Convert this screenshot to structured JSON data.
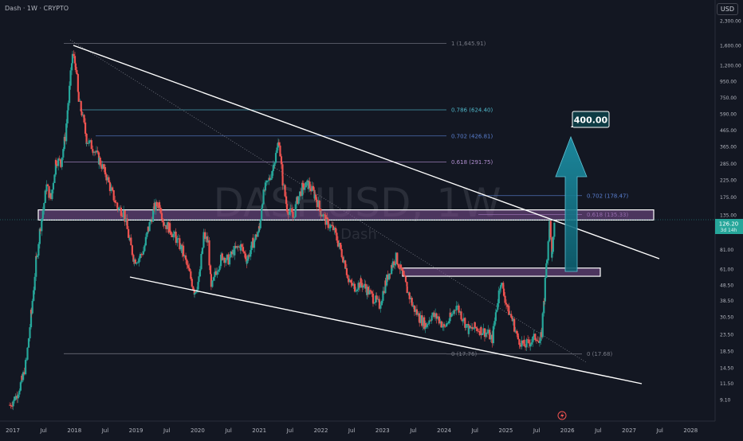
{
  "header": {
    "symbol_line": "Dash · 1W · CRYPTO",
    "currency": "USD"
  },
  "watermark": {
    "ticker": "DASHUSD, 1W",
    "name": "Dash"
  },
  "price_tag": {
    "price": "126.20",
    "countdown": "3d 14h"
  },
  "target": {
    "label": "400.00"
  },
  "colors": {
    "background": "#131722",
    "up": "#26a69a",
    "down": "#ef5350",
    "trendline": "#ffffff",
    "zone": "#7b4f8f",
    "arrow": "#1d92a8",
    "fib_cyan": "#4fb6c8",
    "fib_blue": "#5a7fd0",
    "fib_purple": "#b18fd0",
    "fib_gray": "#787b86"
  },
  "chart_data": {
    "type": "candlestick",
    "y_scale": "log",
    "ylim": [
      7.9,
      2350
    ],
    "y_ticks": [
      "2,300.00",
      "1,600.00",
      "1,200.00",
      "950.00",
      "750.00",
      "590.00",
      "465.00",
      "365.00",
      "285.00",
      "225.00",
      "175.00",
      "135.00",
      "105.00",
      "81.00",
      "61.00",
      "48.50",
      "38.50",
      "30.50",
      "23.50",
      "18.50",
      "14.50",
      "11.50",
      "9.10"
    ],
    "x_ticks": [
      "2017",
      "Jul",
      "2018",
      "Jul",
      "2019",
      "Jul",
      "2020",
      "Jul",
      "2021",
      "Jul",
      "2022",
      "Jul",
      "2023",
      "Jul",
      "2024",
      "Jul",
      "2025",
      "Jul",
      "2026",
      "Jul",
      "2027",
      "Jul",
      "2028"
    ],
    "fib_levels": [
      {
        "label": "1 (1,645.91)",
        "value": 1645.91
      },
      {
        "label": "0.786 (624.40)",
        "value": 624.4
      },
      {
        "label": "0.702 (426.81)",
        "value": 426.81
      },
      {
        "label": "0.618 (291.75)",
        "value": 291.75
      },
      {
        "label": "0.702 (178.47)",
        "value": 178.47
      },
      {
        "label": "0.618 (135.33)",
        "value": 135.33
      },
      {
        "label": "0 (17.76)",
        "value": 17.76
      },
      {
        "label": "0 (17.68)",
        "value": 17.68
      }
    ],
    "price_path": [
      [
        "2016.95",
        8.4
      ],
      [
        "2017.05",
        9.5
      ],
      [
        "2017.15",
        12
      ],
      [
        "2017.22",
        16
      ],
      [
        "2017.3",
        32
      ],
      [
        "2017.38",
        70
      ],
      [
        "2017.45",
        115
      ],
      [
        "2017.55",
        205
      ],
      [
        "2017.62",
        170
      ],
      [
        "2017.7",
        300
      ],
      [
        "2017.78",
        290
      ],
      [
        "2017.85",
        420
      ],
      [
        "2017.9",
        700
      ],
      [
        "2017.97",
        1400
      ],
      [
        "2018.02",
        1200
      ],
      [
        "2018.07",
        700
      ],
      [
        "2018.12",
        600
      ],
      [
        "2018.2",
        400
      ],
      [
        "2018.3",
        360
      ],
      [
        "2018.4",
        300
      ],
      [
        "2018.5",
        250
      ],
      [
        "2018.6",
        190
      ],
      [
        "2018.7",
        150
      ],
      [
        "2018.8",
        140
      ],
      [
        "2018.9",
        90
      ],
      [
        "2018.97",
        70
      ],
      [
        "2019.05",
        72
      ],
      [
        "2019.12",
        80
      ],
      [
        "2019.2",
        110
      ],
      [
        "2019.3",
        150
      ],
      [
        "2019.38",
        160
      ],
      [
        "2019.45",
        120
      ],
      [
        "2019.55",
        110
      ],
      [
        "2019.65",
        95
      ],
      [
        "2019.75",
        80
      ],
      [
        "2019.85",
        60
      ],
      [
        "2019.95",
        44
      ],
      [
        "2020.02",
        52
      ],
      [
        "2020.1",
        100
      ],
      [
        "2020.17",
        90
      ],
      [
        "2020.22",
        45
      ],
      [
        "2020.3",
        60
      ],
      [
        "2020.4",
        74
      ],
      [
        "2020.5",
        70
      ],
      [
        "2020.6",
        80
      ],
      [
        "2020.7",
        85
      ],
      [
        "2020.8",
        70
      ],
      [
        "2020.9",
        90
      ],
      [
        "2021.0",
        110
      ],
      [
        "2021.05",
        170
      ],
      [
        "2021.1",
        200
      ],
      [
        "2021.17",
        230
      ],
      [
        "2021.25",
        300
      ],
      [
        "2021.32",
        400
      ],
      [
        "2021.38",
        220
      ],
      [
        "2021.45",
        150
      ],
      [
        "2021.55",
        130
      ],
      [
        "2021.62",
        170
      ],
      [
        "2021.7",
        200
      ],
      [
        "2021.8",
        210
      ],
      [
        "2021.9",
        180
      ],
      [
        "2022.0",
        140
      ],
      [
        "2022.1",
        120
      ],
      [
        "2022.2",
        110
      ],
      [
        "2022.3",
        85
      ],
      [
        "2022.4",
        65
      ],
      [
        "2022.45",
        50
      ],
      [
        "2022.55",
        47
      ],
      [
        "2022.65",
        50
      ],
      [
        "2022.75",
        45
      ],
      [
        "2022.85",
        40
      ],
      [
        "2022.95",
        36
      ],
      [
        "2023.05",
        50
      ],
      [
        "2023.15",
        65
      ],
      [
        "2023.22",
        72
      ],
      [
        "2023.3",
        60
      ],
      [
        "2023.4",
        45
      ],
      [
        "2023.5",
        35
      ],
      [
        "2023.6",
        30
      ],
      [
        "2023.7",
        27
      ],
      [
        "2023.8",
        31
      ],
      [
        "2023.9",
        30
      ],
      [
        "2024.0",
        26
      ],
      [
        "2024.1",
        30
      ],
      [
        "2024.2",
        36
      ],
      [
        "2024.3",
        30
      ],
      [
        "2024.4",
        25
      ],
      [
        "2024.5",
        26
      ],
      [
        "2024.6",
        25
      ],
      [
        "2024.7",
        24
      ],
      [
        "2024.78",
        22
      ],
      [
        "2024.85",
        35
      ],
      [
        "2024.92",
        52
      ],
      [
        "2024.97",
        42
      ],
      [
        "2025.05",
        33
      ],
      [
        "2025.12",
        28
      ],
      [
        "2025.2",
        22
      ],
      [
        "2025.3",
        20
      ],
      [
        "2025.4",
        21
      ],
      [
        "2025.5",
        23
      ],
      [
        "2025.55",
        20
      ],
      [
        "2025.58",
        24
      ],
      [
        "2025.62",
        40
      ],
      [
        "2025.67",
        75
      ],
      [
        "2025.71",
        118
      ],
      [
        "2025.75",
        75
      ],
      [
        "2025.8",
        126.2
      ]
    ]
  }
}
